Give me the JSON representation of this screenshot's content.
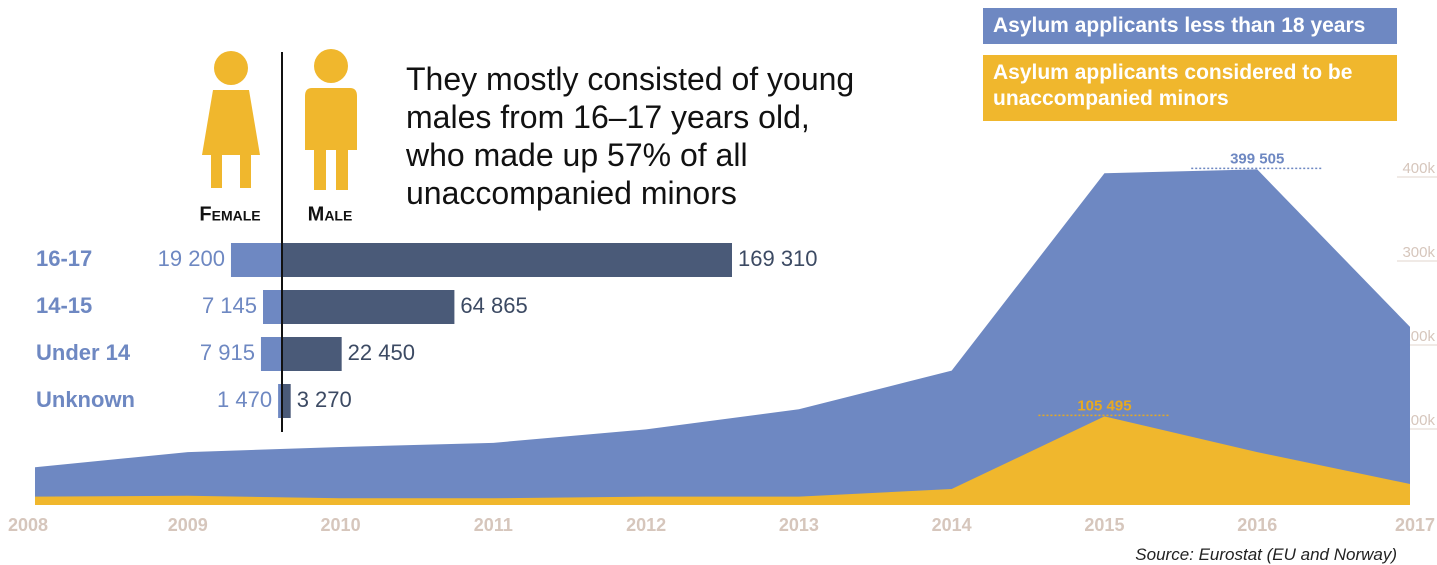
{
  "chart_data": [
    {
      "type": "area",
      "x": [
        2008,
        2009,
        2010,
        2011,
        2012,
        2013,
        2014,
        2015,
        2016,
        2017
      ],
      "xlim": [
        2008,
        2017
      ],
      "xticks": [
        2008,
        2009,
        2010,
        2011,
        2012,
        2013,
        2014,
        2015,
        2016,
        2017
      ],
      "ylim": [
        0,
        400000
      ],
      "yticks": [
        {
          "value": 100000,
          "label": "100k"
        },
        {
          "value": 200000,
          "label": "200k"
        },
        {
          "value": 300000,
          "label": "300k"
        },
        {
          "value": 400000,
          "label": "400k"
        }
      ],
      "series": [
        {
          "name": "Asylum applicants less than 18 years",
          "color": "#6e88c2",
          "values": [
            45000,
            63000,
            69000,
            74000,
            90000,
            114000,
            160000,
            395000,
            399505,
            212000
          ],
          "value_labels": [
            null,
            null,
            null,
            null,
            null,
            null,
            null,
            null,
            "399 505",
            null
          ]
        },
        {
          "name": "Asylum applicants considered to be unaccompanied minors",
          "color": "#f0b72d",
          "values": [
            10000,
            11000,
            8000,
            8000,
            10000,
            10000,
            19000,
            105495,
            63000,
            25000
          ],
          "value_labels": [
            null,
            null,
            null,
            null,
            null,
            null,
            null,
            "105 495",
            null,
            null
          ]
        }
      ],
      "source": "Source: Eurostat (EU and Norway)"
    },
    {
      "type": "butterfly-bar",
      "annotation": "They mostly consisted of young males from 16–17 years old, who made up 57% of all unaccompanied minors",
      "categories": [
        "16-17",
        "14-15",
        "Under 14",
        "Unknown"
      ],
      "series": [
        {
          "name": "Female",
          "color": "#6e88c2",
          "values": [
            19200,
            7145,
            7915,
            1470
          ],
          "value_labels": [
            "19 200",
            "7 145",
            "7 915",
            "1 470"
          ]
        },
        {
          "name": "Male",
          "color": "#4a5a78",
          "values": [
            169310,
            64865,
            22450,
            3270
          ],
          "value_labels": [
            "169 310",
            "64 865",
            "22 450",
            "3 270"
          ]
        }
      ]
    }
  ]
}
